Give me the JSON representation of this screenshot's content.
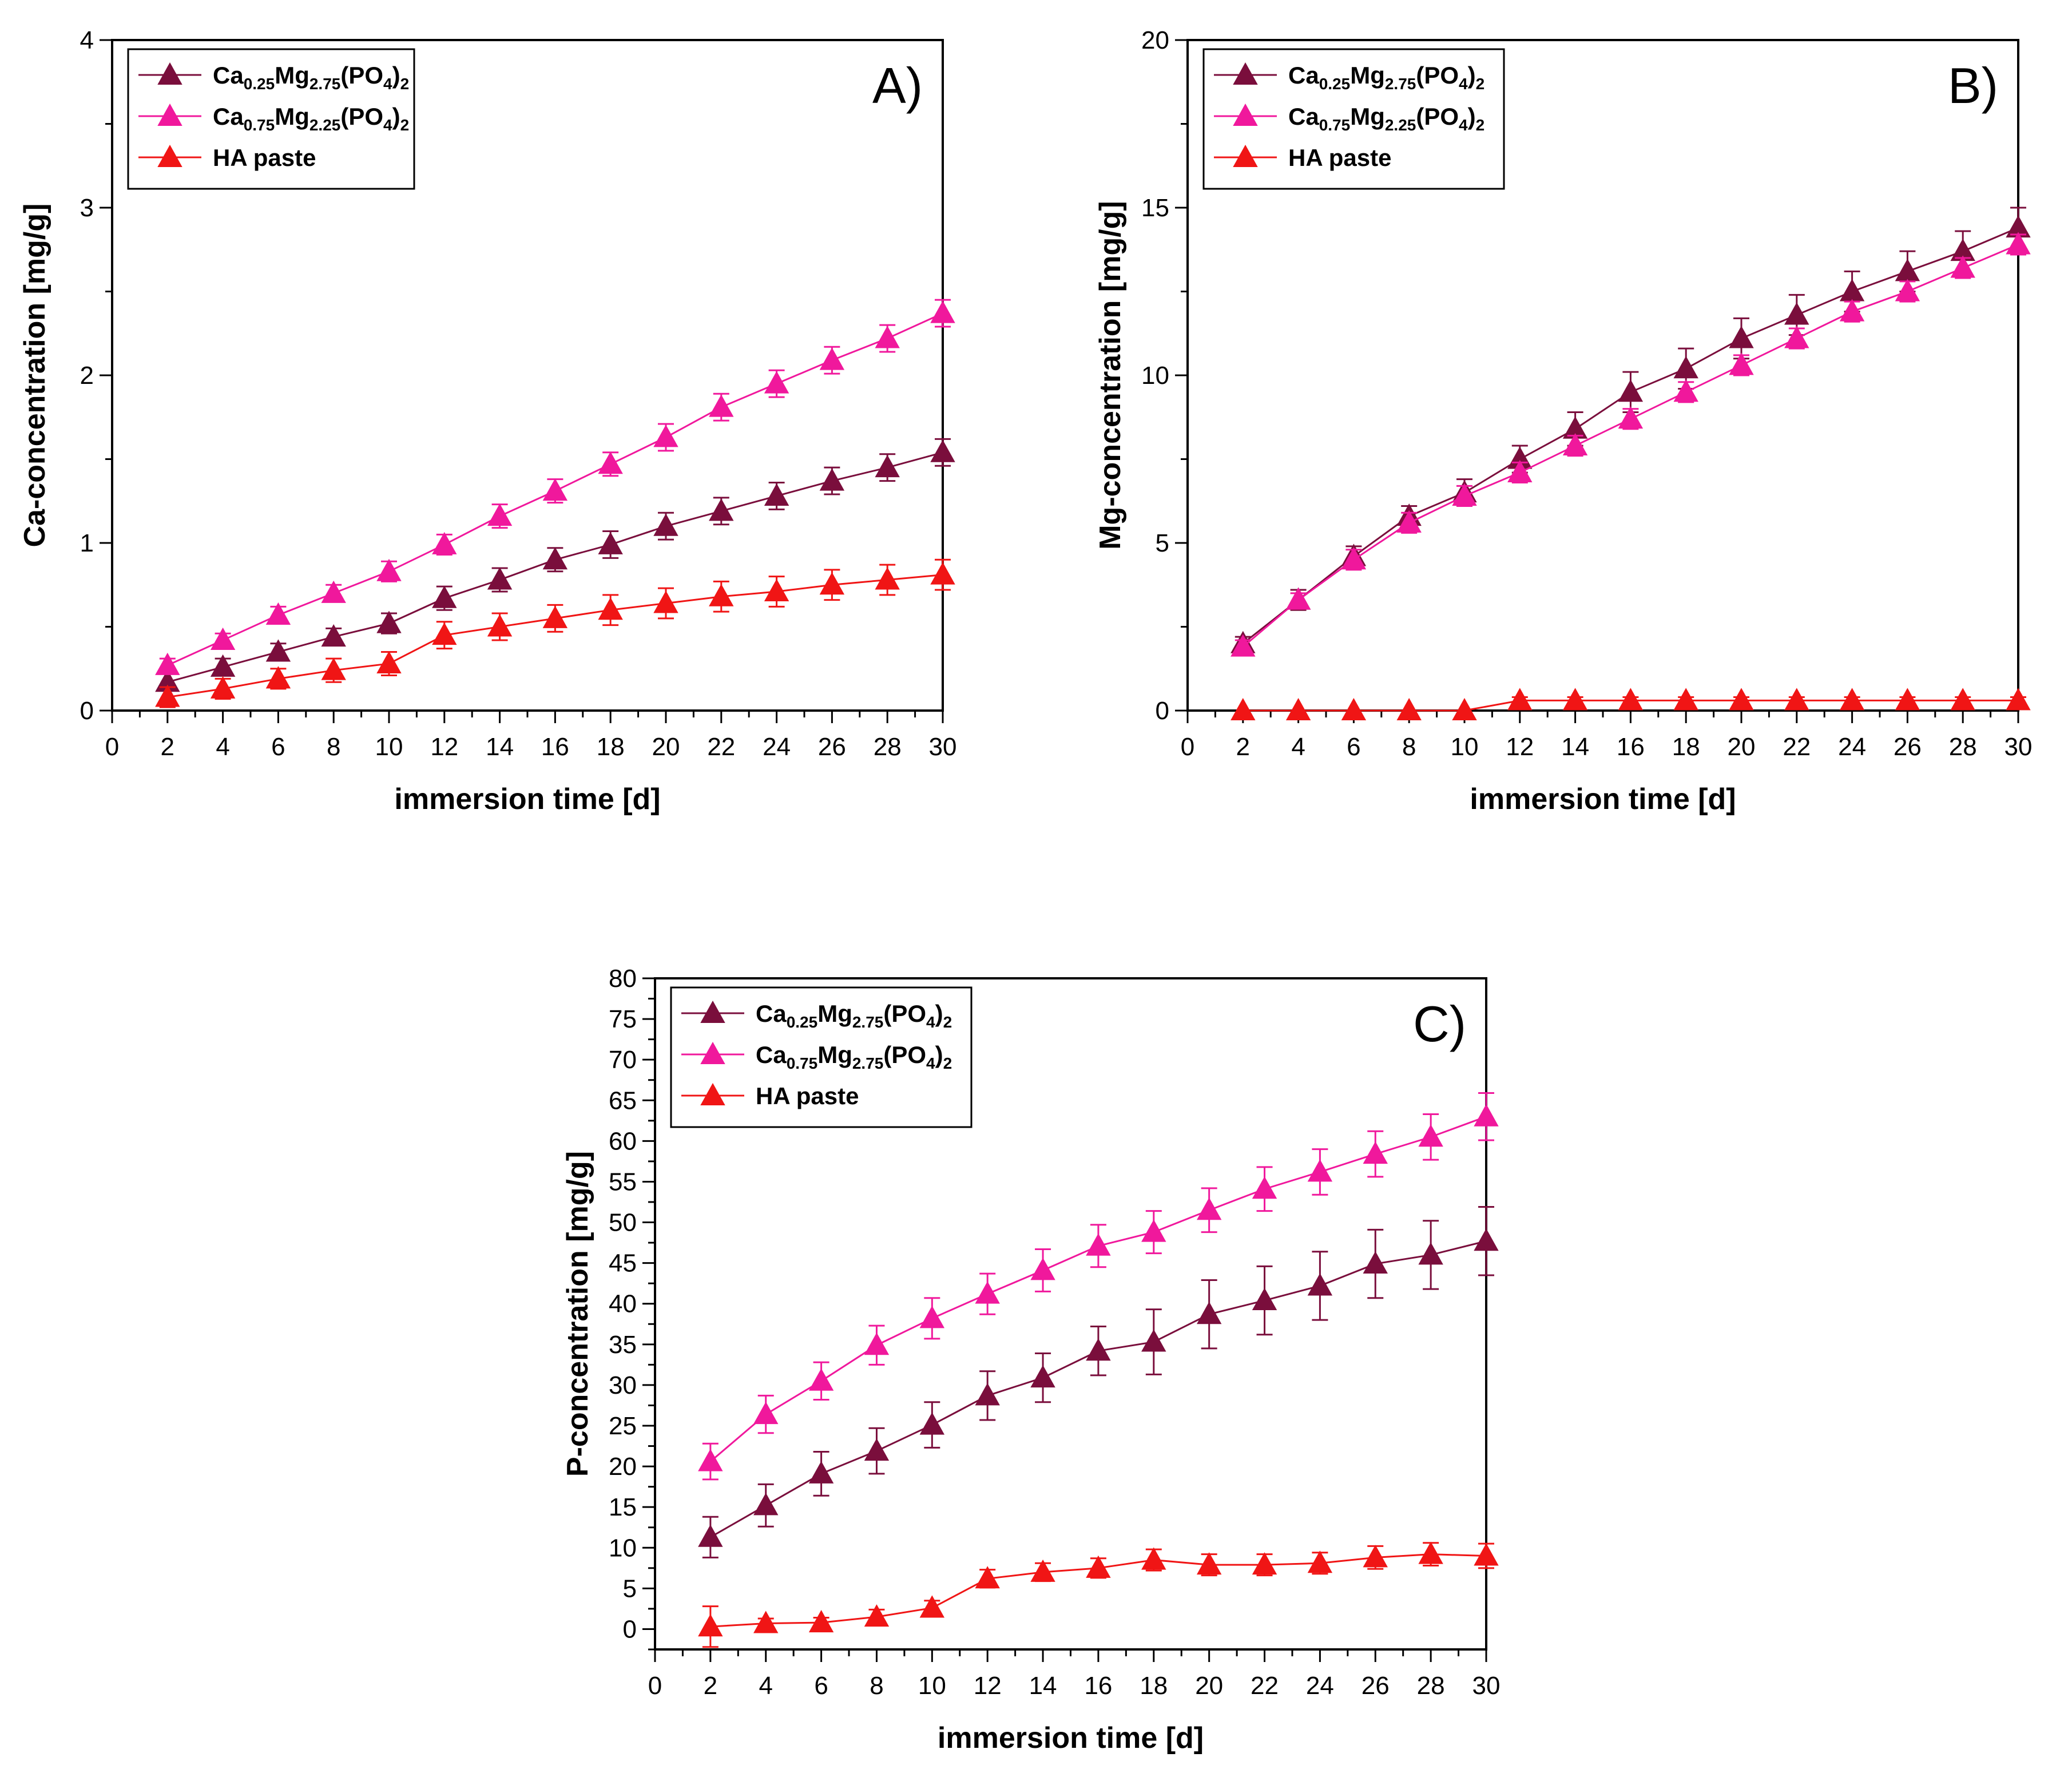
{
  "chart_data": [
    {
      "type": "line",
      "panel_label": "A)",
      "xlabel": "immersion time [d]",
      "ylabel": "Ca-concentration  [mg/g]",
      "xlim": [
        0,
        30
      ],
      "ylim": [
        0,
        4
      ],
      "x_ticks": [
        "0",
        "2",
        "4",
        "6",
        "8",
        "10",
        "12",
        "14",
        "16",
        "18",
        "20",
        "22",
        "24",
        "26",
        "28",
        "30"
      ],
      "y_ticks": [
        "0",
        "1",
        "2",
        "3",
        "4"
      ],
      "legend_position": "top-left",
      "x": [
        2,
        4,
        6,
        8,
        10,
        12,
        14,
        16,
        18,
        20,
        22,
        24,
        26,
        28,
        30
      ],
      "series": [
        {
          "name": "Ca0.25Mg2.75(PO4)2",
          "legend": {
            "parts": [
              "Ca",
              "0.25",
              "Mg",
              "2.75",
              "(PO",
              "4",
              ")",
              "2"
            ]
          },
          "color": "#7a0e3c",
          "values": [
            0.17,
            0.26,
            0.35,
            0.44,
            0.52,
            0.67,
            0.78,
            0.9,
            0.99,
            1.1,
            1.19,
            1.28,
            1.37,
            1.45,
            1.54
          ],
          "errors": [
            0.05,
            0.05,
            0.05,
            0.05,
            0.06,
            0.07,
            0.07,
            0.07,
            0.08,
            0.08,
            0.08,
            0.08,
            0.08,
            0.08,
            0.08
          ]
        },
        {
          "name": "Ca0.75Mg2.25(PO4)2",
          "legend": {
            "parts": [
              "Ca",
              "0.75",
              "Mg",
              "2.25",
              "(PO",
              "4",
              ")",
              "2"
            ]
          },
          "color": "#f0189c",
          "values": [
            0.27,
            0.42,
            0.57,
            0.7,
            0.83,
            0.99,
            1.16,
            1.31,
            1.47,
            1.63,
            1.81,
            1.95,
            2.09,
            2.22,
            2.37
          ],
          "errors": [
            0.04,
            0.04,
            0.05,
            0.05,
            0.06,
            0.06,
            0.07,
            0.07,
            0.07,
            0.08,
            0.08,
            0.08,
            0.08,
            0.08,
            0.08
          ]
        },
        {
          "name": "HA paste",
          "legend": {
            "parts": [
              "HA paste"
            ]
          },
          "color": "#f01515",
          "values": [
            0.08,
            0.13,
            0.19,
            0.24,
            0.28,
            0.45,
            0.5,
            0.55,
            0.6,
            0.64,
            0.68,
            0.71,
            0.75,
            0.78,
            0.81
          ],
          "errors": [
            0.06,
            0.06,
            0.06,
            0.07,
            0.07,
            0.08,
            0.08,
            0.08,
            0.09,
            0.09,
            0.09,
            0.09,
            0.09,
            0.09,
            0.09
          ]
        }
      ]
    },
    {
      "type": "line",
      "panel_label": "B)",
      "xlabel": "immersion time [d]",
      "ylabel": "Mg-concentration  [mg/g]",
      "xlim": [
        0,
        30
      ],
      "ylim": [
        0,
        20
      ],
      "x_ticks": [
        "0",
        "2",
        "4",
        "6",
        "8",
        "10",
        "12",
        "14",
        "16",
        "18",
        "20",
        "22",
        "24",
        "26",
        "28",
        "30"
      ],
      "y_ticks": [
        "0",
        "5",
        "10",
        "15",
        "20"
      ],
      "legend_position": "top-left",
      "x": [
        2,
        4,
        6,
        8,
        10,
        12,
        14,
        16,
        18,
        20,
        22,
        24,
        26,
        28,
        30
      ],
      "series": [
        {
          "name": "Ca0.25Mg2.75(PO4)2",
          "legend": {
            "parts": [
              "Ca",
              "0.25",
              "Mg",
              "2.75",
              "(PO",
              "4",
              ")",
              "2"
            ]
          },
          "color": "#7a0e3c",
          "values": [
            2.0,
            3.3,
            4.6,
            5.8,
            6.5,
            7.5,
            8.4,
            9.5,
            10.2,
            11.1,
            11.8,
            12.5,
            13.1,
            13.7,
            14.4
          ],
          "errors": [
            0.2,
            0.3,
            0.3,
            0.3,
            0.4,
            0.4,
            0.5,
            0.6,
            0.6,
            0.6,
            0.6,
            0.6,
            0.6,
            0.6,
            0.6
          ]
        },
        {
          "name": "Ca0.75Mg2.25(PO4)2",
          "legend": {
            "parts": [
              "Ca",
              "0.75",
              "Mg",
              "2.25",
              "(PO",
              "4",
              ")",
              "2"
            ]
          },
          "color": "#f0189c",
          "values": [
            1.9,
            3.3,
            4.5,
            5.6,
            6.4,
            7.1,
            7.9,
            8.7,
            9.5,
            10.3,
            11.1,
            11.9,
            12.5,
            13.2,
            13.9
          ],
          "errors": [
            0.2,
            0.2,
            0.3,
            0.3,
            0.3,
            0.3,
            0.3,
            0.3,
            0.3,
            0.3,
            0.3,
            0.3,
            0.3,
            0.3,
            0.3
          ]
        },
        {
          "name": "HA paste",
          "legend": {
            "parts": [
              "HA paste"
            ]
          },
          "color": "#f01515",
          "values": [
            0,
            0,
            0,
            0,
            0,
            0.3,
            0.3,
            0.3,
            0.3,
            0.3,
            0.3,
            0.3,
            0.3,
            0.3,
            0.3
          ],
          "errors": [
            0,
            0,
            0,
            0,
            0,
            0.1,
            0.1,
            0.1,
            0.1,
            0.1,
            0.1,
            0.1,
            0.1,
            0.1,
            0.1
          ]
        }
      ]
    },
    {
      "type": "line",
      "panel_label": "C)",
      "xlabel": "immersion time [d]",
      "ylabel": "P-concentration [mg/g]",
      "xlim": [
        0,
        30
      ],
      "ylim": [
        -2.5,
        80
      ],
      "x_ticks": [
        "0",
        "2",
        "4",
        "6",
        "8",
        "10",
        "12",
        "14",
        "16",
        "18",
        "20",
        "22",
        "24",
        "26",
        "28",
        "30"
      ],
      "y_ticks": [
        "0",
        "5",
        "10",
        "15",
        "20",
        "25",
        "30",
        "35",
        "40",
        "45",
        "50",
        "55",
        "60",
        "65",
        "70",
        "75",
        "80"
      ],
      "legend_position": "top-left",
      "x": [
        2,
        4,
        6,
        8,
        10,
        12,
        14,
        16,
        18,
        20,
        22,
        24,
        26,
        28,
        30
      ],
      "series": [
        {
          "name": "Ca0.25Mg2.75(PO4)2",
          "legend": {
            "parts": [
              "Ca",
              "0.25",
              "Mg",
              "2.75",
              "(PO",
              "4",
              ")",
              "2"
            ]
          },
          "color": "#7a0e3c",
          "values": [
            11.3,
            15.2,
            19.1,
            21.9,
            25.1,
            28.7,
            30.9,
            34.2,
            35.3,
            38.7,
            40.4,
            42.2,
            44.9,
            46.0,
            47.7
          ],
          "errors": [
            2.5,
            2.6,
            2.7,
            2.8,
            2.8,
            3.0,
            3.0,
            3.0,
            4.0,
            4.2,
            4.2,
            4.2,
            4.2,
            4.2,
            4.2
          ]
        },
        {
          "name": "Ca0.75Mg2.75(PO4)2",
          "legend": {
            "parts": [
              "Ca",
              "0.75",
              "Mg",
              "2.75",
              "(PO",
              "4",
              ")",
              "2"
            ]
          },
          "color": "#f0189c",
          "values": [
            20.6,
            26.4,
            30.5,
            34.9,
            38.2,
            41.2,
            44.1,
            47.1,
            48.8,
            51.5,
            54.1,
            56.2,
            58.4,
            60.5,
            63.0
          ],
          "errors": [
            2.2,
            2.3,
            2.3,
            2.4,
            2.5,
            2.5,
            2.6,
            2.6,
            2.6,
            2.7,
            2.7,
            2.8,
            2.8,
            2.8,
            2.9
          ]
        },
        {
          "name": "HA paste",
          "legend": {
            "parts": [
              "HA paste"
            ]
          },
          "color": "#f01515",
          "values": [
            0.3,
            0.7,
            0.8,
            1.5,
            2.6,
            6.2,
            7.0,
            7.5,
            8.5,
            7.9,
            7.9,
            8.1,
            8.8,
            9.2,
            9.0
          ],
          "errors": [
            2.5,
            0.6,
            0.6,
            0.9,
            0.9,
            1.1,
            1.1,
            1.2,
            1.3,
            1.3,
            1.3,
            1.3,
            1.4,
            1.4,
            1.5
          ]
        }
      ]
    }
  ]
}
